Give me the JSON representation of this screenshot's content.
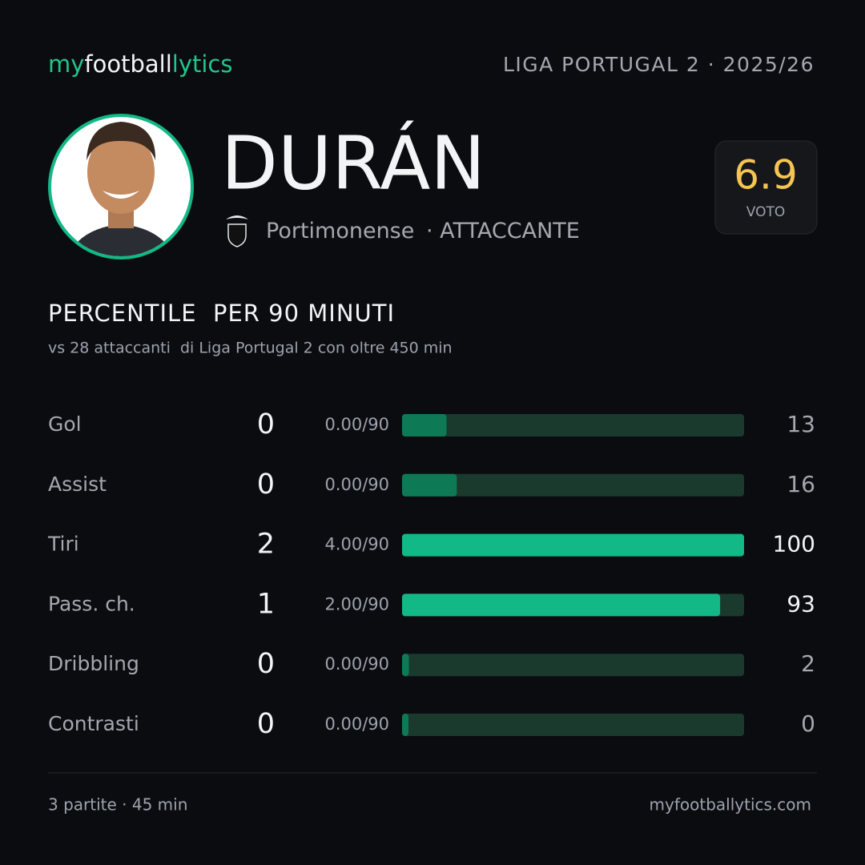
{
  "header": {
    "brand": [
      "my",
      "football",
      "lytics"
    ],
    "league": "LIGA PORTUGAL 2 · 2025/26"
  },
  "player": {
    "name": "DURÁN",
    "team": "Portimonense",
    "role": "· ATTACCANTE"
  },
  "rating": {
    "value": 6.9,
    "label": "VOTO"
  },
  "section": {
    "title": "PERCENTILE  PER 90 MINUTI",
    "subtitle": "vs 28 attaccanti  di Liga Portugal 2 con oltre 450 min"
  },
  "chart_data": {
    "type": "bar",
    "orientation": "horizontal",
    "categories": [
      "Gol",
      "Assist",
      "Tiri",
      "Pass. ch.",
      "Dribbling",
      "Contrasti"
    ],
    "totals": [
      0,
      0,
      2,
      1,
      0,
      0
    ],
    "per90": [
      "0.00/90",
      "0.00/90",
      "4.00/90",
      "2.00/90",
      "0.00/90",
      "0.00/90"
    ],
    "values": [
      13,
      16,
      100,
      93,
      2,
      0
    ],
    "colors": [
      "#0e7a55",
      "#0e7a55",
      "#12b886",
      "#12b886",
      "#0e7a55",
      "#0e7a55"
    ],
    "xlim": [
      0,
      100
    ]
  },
  "footer": {
    "left": "3 partite · 45 min",
    "right": "myfootballytics.com"
  }
}
